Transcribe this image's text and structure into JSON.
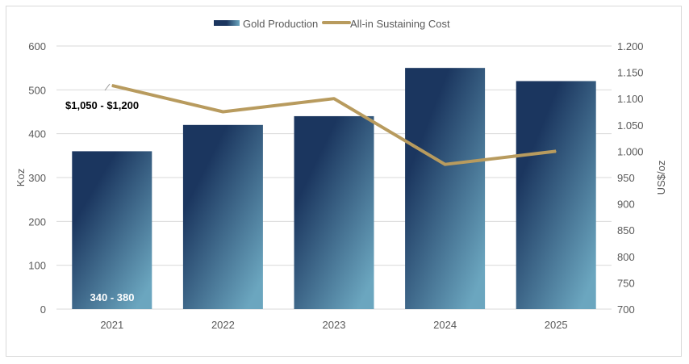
{
  "chart_data": {
    "type": "bar+line",
    "categories": [
      "2021",
      "2022",
      "2023",
      "2024",
      "2025"
    ],
    "series": [
      {
        "name": "Gold Production",
        "type": "bar",
        "axis": "left",
        "values": [
          360,
          420,
          440,
          550,
          520
        ]
      },
      {
        "name": "All-in Sustaining Cost",
        "type": "line",
        "axis": "right",
        "values": [
          1125,
          1075,
          1100,
          975,
          1000
        ]
      }
    ],
    "ylabel": "Koz",
    "y2label": "US$/oz",
    "ylim": [
      0,
      600
    ],
    "y2lim": [
      700,
      1200
    ],
    "yticks": [
      "0",
      "100",
      "200",
      "300",
      "400",
      "500",
      "600"
    ],
    "y2ticks": [
      "700",
      "750",
      "800",
      "850",
      "900",
      "950",
      "1.000",
      "1.050",
      "1.100",
      "1.150",
      "1.200"
    ],
    "annotations": [
      "$1,050 - $1,200",
      "340 - 380"
    ],
    "legend": "top",
    "grid": true,
    "colors": {
      "bar_top": "#1b365f",
      "bar_bottom": "#6ba6bf",
      "line": "#b89b5e",
      "grid": "#d9d9d9",
      "text": "#595959"
    }
  }
}
